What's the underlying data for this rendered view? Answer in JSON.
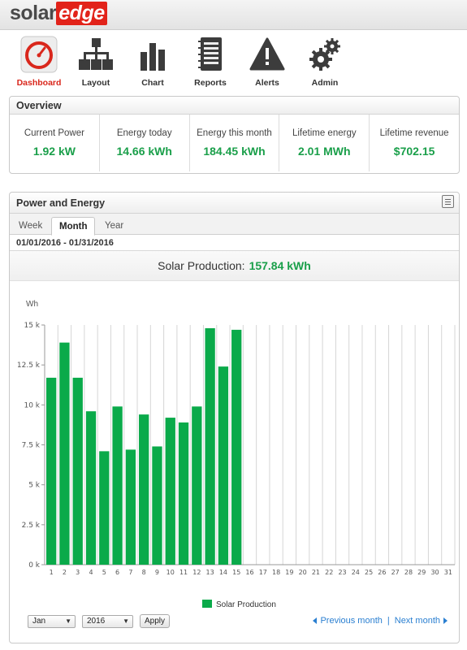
{
  "brand": {
    "part1": "solar",
    "part2": "edge"
  },
  "nav": [
    {
      "label": "Dashboard",
      "icon": "dashboard-gauge-icon",
      "active": true
    },
    {
      "label": "Layout",
      "icon": "layout-hierarchy-icon",
      "active": false
    },
    {
      "label": "Chart",
      "icon": "bar-chart-icon",
      "active": false
    },
    {
      "label": "Reports",
      "icon": "reports-notebook-icon",
      "active": false
    },
    {
      "label": "Alerts",
      "icon": "alert-warning-icon",
      "active": false
    },
    {
      "label": "Admin",
      "icon": "admin-gears-icon",
      "active": false
    }
  ],
  "overview": {
    "title": "Overview",
    "items": [
      {
        "label": "Current Power",
        "value": "1.92 kW"
      },
      {
        "label": "Energy today",
        "value": "14.66 kWh"
      },
      {
        "label": "Energy this month",
        "value": "184.45 kWh"
      },
      {
        "label": "Lifetime energy",
        "value": "2.01 MWh"
      },
      {
        "label": "Lifetime revenue",
        "value": "$702.15"
      }
    ]
  },
  "power_energy": {
    "title": "Power and Energy",
    "tabs": [
      "Week",
      "Month",
      "Year"
    ],
    "active_tab": "Month",
    "date_range": "01/01/2016 - 01/31/2016",
    "summary_label": "Solar Production:",
    "summary_value": "157.84 kWh"
  },
  "chart_data": {
    "type": "bar",
    "ylabel": "Wh",
    "ylim": [
      0,
      15000
    ],
    "yticks": [
      0,
      2500,
      5000,
      7500,
      10000,
      12500,
      15000
    ],
    "ytick_labels": [
      "0 k",
      "2.5 k",
      "5 k",
      "7.5 k",
      "10 k",
      "12.5 k",
      "15 k"
    ],
    "categories": [
      "1",
      "2",
      "3",
      "4",
      "5",
      "6",
      "7",
      "8",
      "9",
      "10",
      "11",
      "12",
      "13",
      "14",
      "15",
      "16",
      "17",
      "18",
      "19",
      "20",
      "21",
      "22",
      "23",
      "24",
      "25",
      "26",
      "27",
      "28",
      "29",
      "30",
      "31"
    ],
    "series": [
      {
        "name": "Solar Production",
        "color": "#0aaa4a",
        "values": [
          11700,
          13900,
          11700,
          9600,
          7100,
          9900,
          7200,
          9400,
          7400,
          9200,
          8900,
          9900,
          14800,
          12400,
          14700,
          null,
          null,
          null,
          null,
          null,
          null,
          null,
          null,
          null,
          null,
          null,
          null,
          null,
          null,
          null,
          null
        ]
      }
    ],
    "grid": true,
    "legend": "bottom"
  },
  "controls": {
    "month": "Jan",
    "year": "2016",
    "apply": "Apply",
    "prev": "Previous month",
    "separator": "|",
    "next": "Next month"
  }
}
